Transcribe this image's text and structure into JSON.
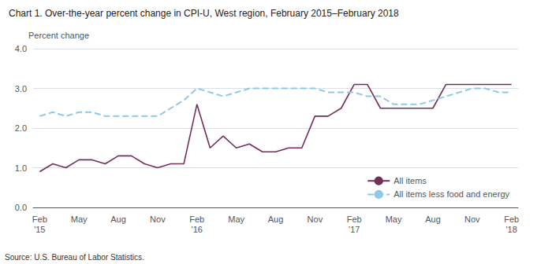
{
  "chart_data": {
    "type": "line",
    "title": "Chart 1. Over-the-year percent change in CPI-U, West region, February 2015–February 2018",
    "ylabel": "Percent change",
    "annotations": [
      "Source: U.S. Bureau of Labor Statistics."
    ],
    "categories": [
      "Feb\n'15",
      null,
      null,
      "May",
      null,
      null,
      "Aug",
      null,
      null,
      "Nov",
      null,
      null,
      "Feb\n'16",
      null,
      null,
      "May",
      null,
      null,
      "Aug",
      null,
      null,
      "Nov",
      null,
      null,
      "Feb\n'17",
      null,
      null,
      "May",
      null,
      null,
      "Aug",
      null,
      null,
      "Nov",
      null,
      null,
      "Feb\n'18"
    ],
    "series": [
      {
        "name": "All items",
        "color": "#722f5a",
        "line_style": "solid",
        "values": [
          0.9,
          1.1,
          1.0,
          1.2,
          1.2,
          1.1,
          1.3,
          1.3,
          1.1,
          1.0,
          1.1,
          1.1,
          2.6,
          1.5,
          1.8,
          1.5,
          1.6,
          1.4,
          1.4,
          1.5,
          1.5,
          2.3,
          2.3,
          2.5,
          3.1,
          3.1,
          2.5,
          2.5,
          2.5,
          2.5,
          2.5,
          3.1,
          3.1,
          3.1,
          3.1,
          3.1,
          3.1
        ]
      },
      {
        "name": "All items less food and energy",
        "color": "#8ecae6",
        "line_style": "dashed",
        "values": [
          2.3,
          2.4,
          2.3,
          2.4,
          2.4,
          2.3,
          2.3,
          2.3,
          2.3,
          2.3,
          2.5,
          2.7,
          3.0,
          2.9,
          2.8,
          2.9,
          3.0,
          3.0,
          3.0,
          3.0,
          3.0,
          3.0,
          2.9,
          2.9,
          2.9,
          2.8,
          2.8,
          2.6,
          2.6,
          2.6,
          2.7,
          2.8,
          2.9,
          3.0,
          3.0,
          2.9,
          2.9
        ]
      }
    ],
    "ylim": [
      0.0,
      4.0
    ],
    "yticks": [
      {
        "value": 0,
        "label": "0.0"
      },
      {
        "value": 1,
        "label": "1.0"
      },
      {
        "value": 2,
        "label": "2.0"
      },
      {
        "value": 3,
        "label": "3.0"
      },
      {
        "value": 4,
        "label": "4.0"
      }
    ],
    "grid": true,
    "legend": "lower right"
  }
}
